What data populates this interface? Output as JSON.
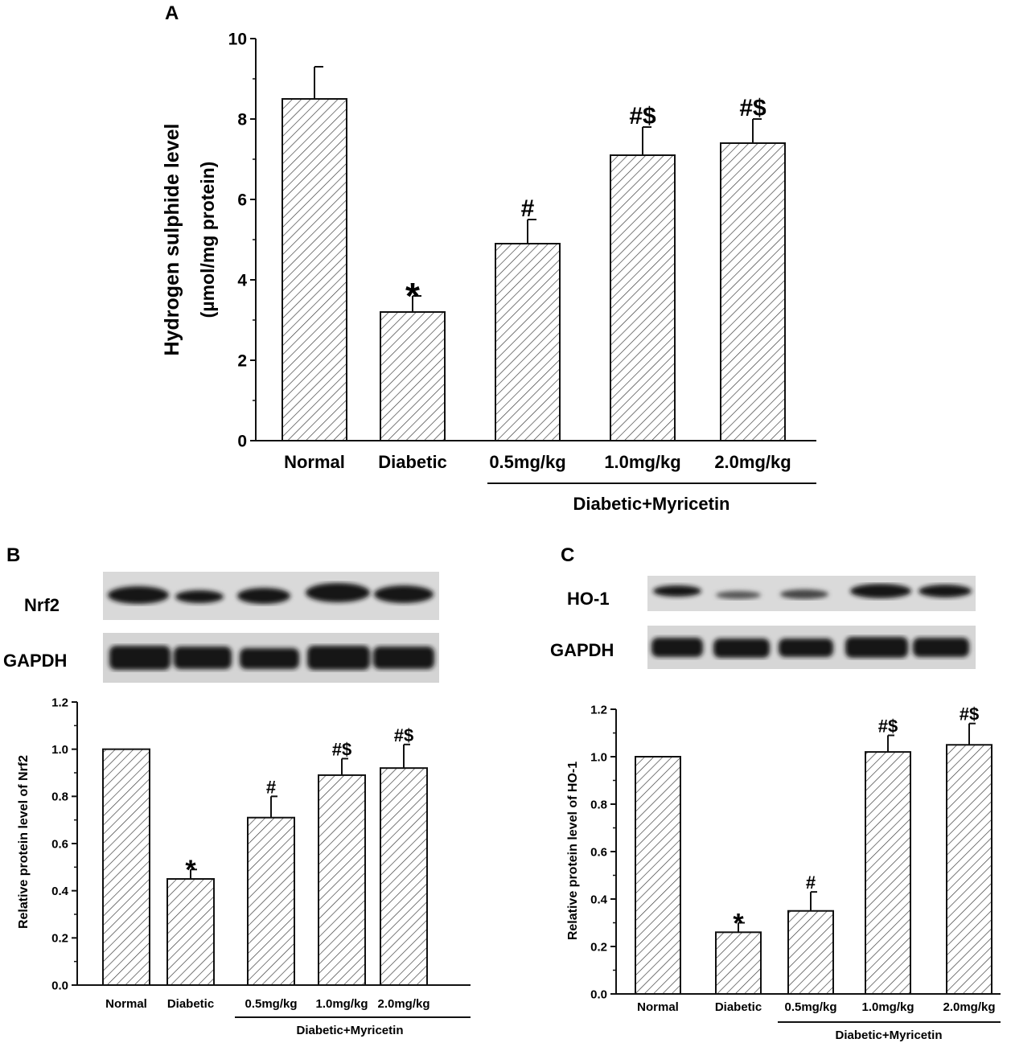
{
  "colors": {
    "ink": "#111111",
    "background": "#ffffff",
    "blot_background": "#d9d9d9",
    "band": "#161616"
  },
  "panels": {
    "A": {
      "letter": "A"
    },
    "B": {
      "letter": "B",
      "blot_labels": [
        "Nrf2",
        "GAPDH"
      ]
    },
    "C": {
      "letter": "C",
      "blot_labels": [
        "HO-1",
        "GAPDH"
      ]
    }
  },
  "chart_data": [
    {
      "panel": "A",
      "type": "bar",
      "pattern": "diagonal-hatch",
      "categories": [
        "Normal",
        "Diabetic",
        "0.5mg/kg",
        "1.0mg/kg",
        "2.0mg/kg"
      ],
      "group_label": "Diabetic+Myricetin",
      "values": [
        8.5,
        3.2,
        4.9,
        7.1,
        7.4
      ],
      "errors": [
        0.8,
        0.4,
        0.6,
        0.7,
        0.6
      ],
      "annotations": [
        "",
        "*",
        "#",
        "#$",
        "#$"
      ],
      "ylabel": "Hydrogen sulphide level",
      "ylabel2": "(µmol/mg protein)",
      "ylim": [
        0,
        10
      ],
      "yticks": [
        "0",
        "2",
        "4",
        "6",
        "8",
        "10"
      ],
      "grid": false
    },
    {
      "panel": "B",
      "type": "bar",
      "pattern": "diagonal-hatch",
      "categories": [
        "Normal",
        "Diabetic",
        "0.5mg/kg",
        "1.0mg/kg",
        "2.0mg/kg"
      ],
      "group_label": "Diabetic+Myricetin",
      "values": [
        1.0,
        0.45,
        0.71,
        0.89,
        0.92
      ],
      "errors": [
        0.0,
        0.04,
        0.09,
        0.07,
        0.1
      ],
      "annotations": [
        "",
        "*",
        "#",
        "#$",
        "#$"
      ],
      "ylabel": "Relative protein level of Nrf2",
      "ylim": [
        0,
        1.2
      ],
      "yticks": [
        "0.0",
        "0.2",
        "0.4",
        "0.6",
        "0.8",
        "1.0",
        "1.2"
      ],
      "grid": false
    },
    {
      "panel": "C",
      "type": "bar",
      "pattern": "diagonal-hatch",
      "categories": [
        "Normal",
        "Diabetic",
        "0.5mg/kg",
        "1.0mg/kg",
        "2.0mg/kg"
      ],
      "group_label": "Diabetic+Myricetin",
      "values": [
        1.0,
        0.26,
        0.35,
        1.02,
        1.05
      ],
      "errors": [
        0.0,
        0.04,
        0.08,
        0.07,
        0.09
      ],
      "annotations": [
        "",
        "*",
        "#",
        "#$",
        "#$"
      ],
      "ylabel": "Relative protein level of HO-1",
      "ylim": [
        0,
        1.2
      ],
      "yticks": [
        "0.0",
        "0.2",
        "0.4",
        "0.6",
        "0.8",
        "1.0",
        "1.2"
      ],
      "grid": false
    }
  ]
}
